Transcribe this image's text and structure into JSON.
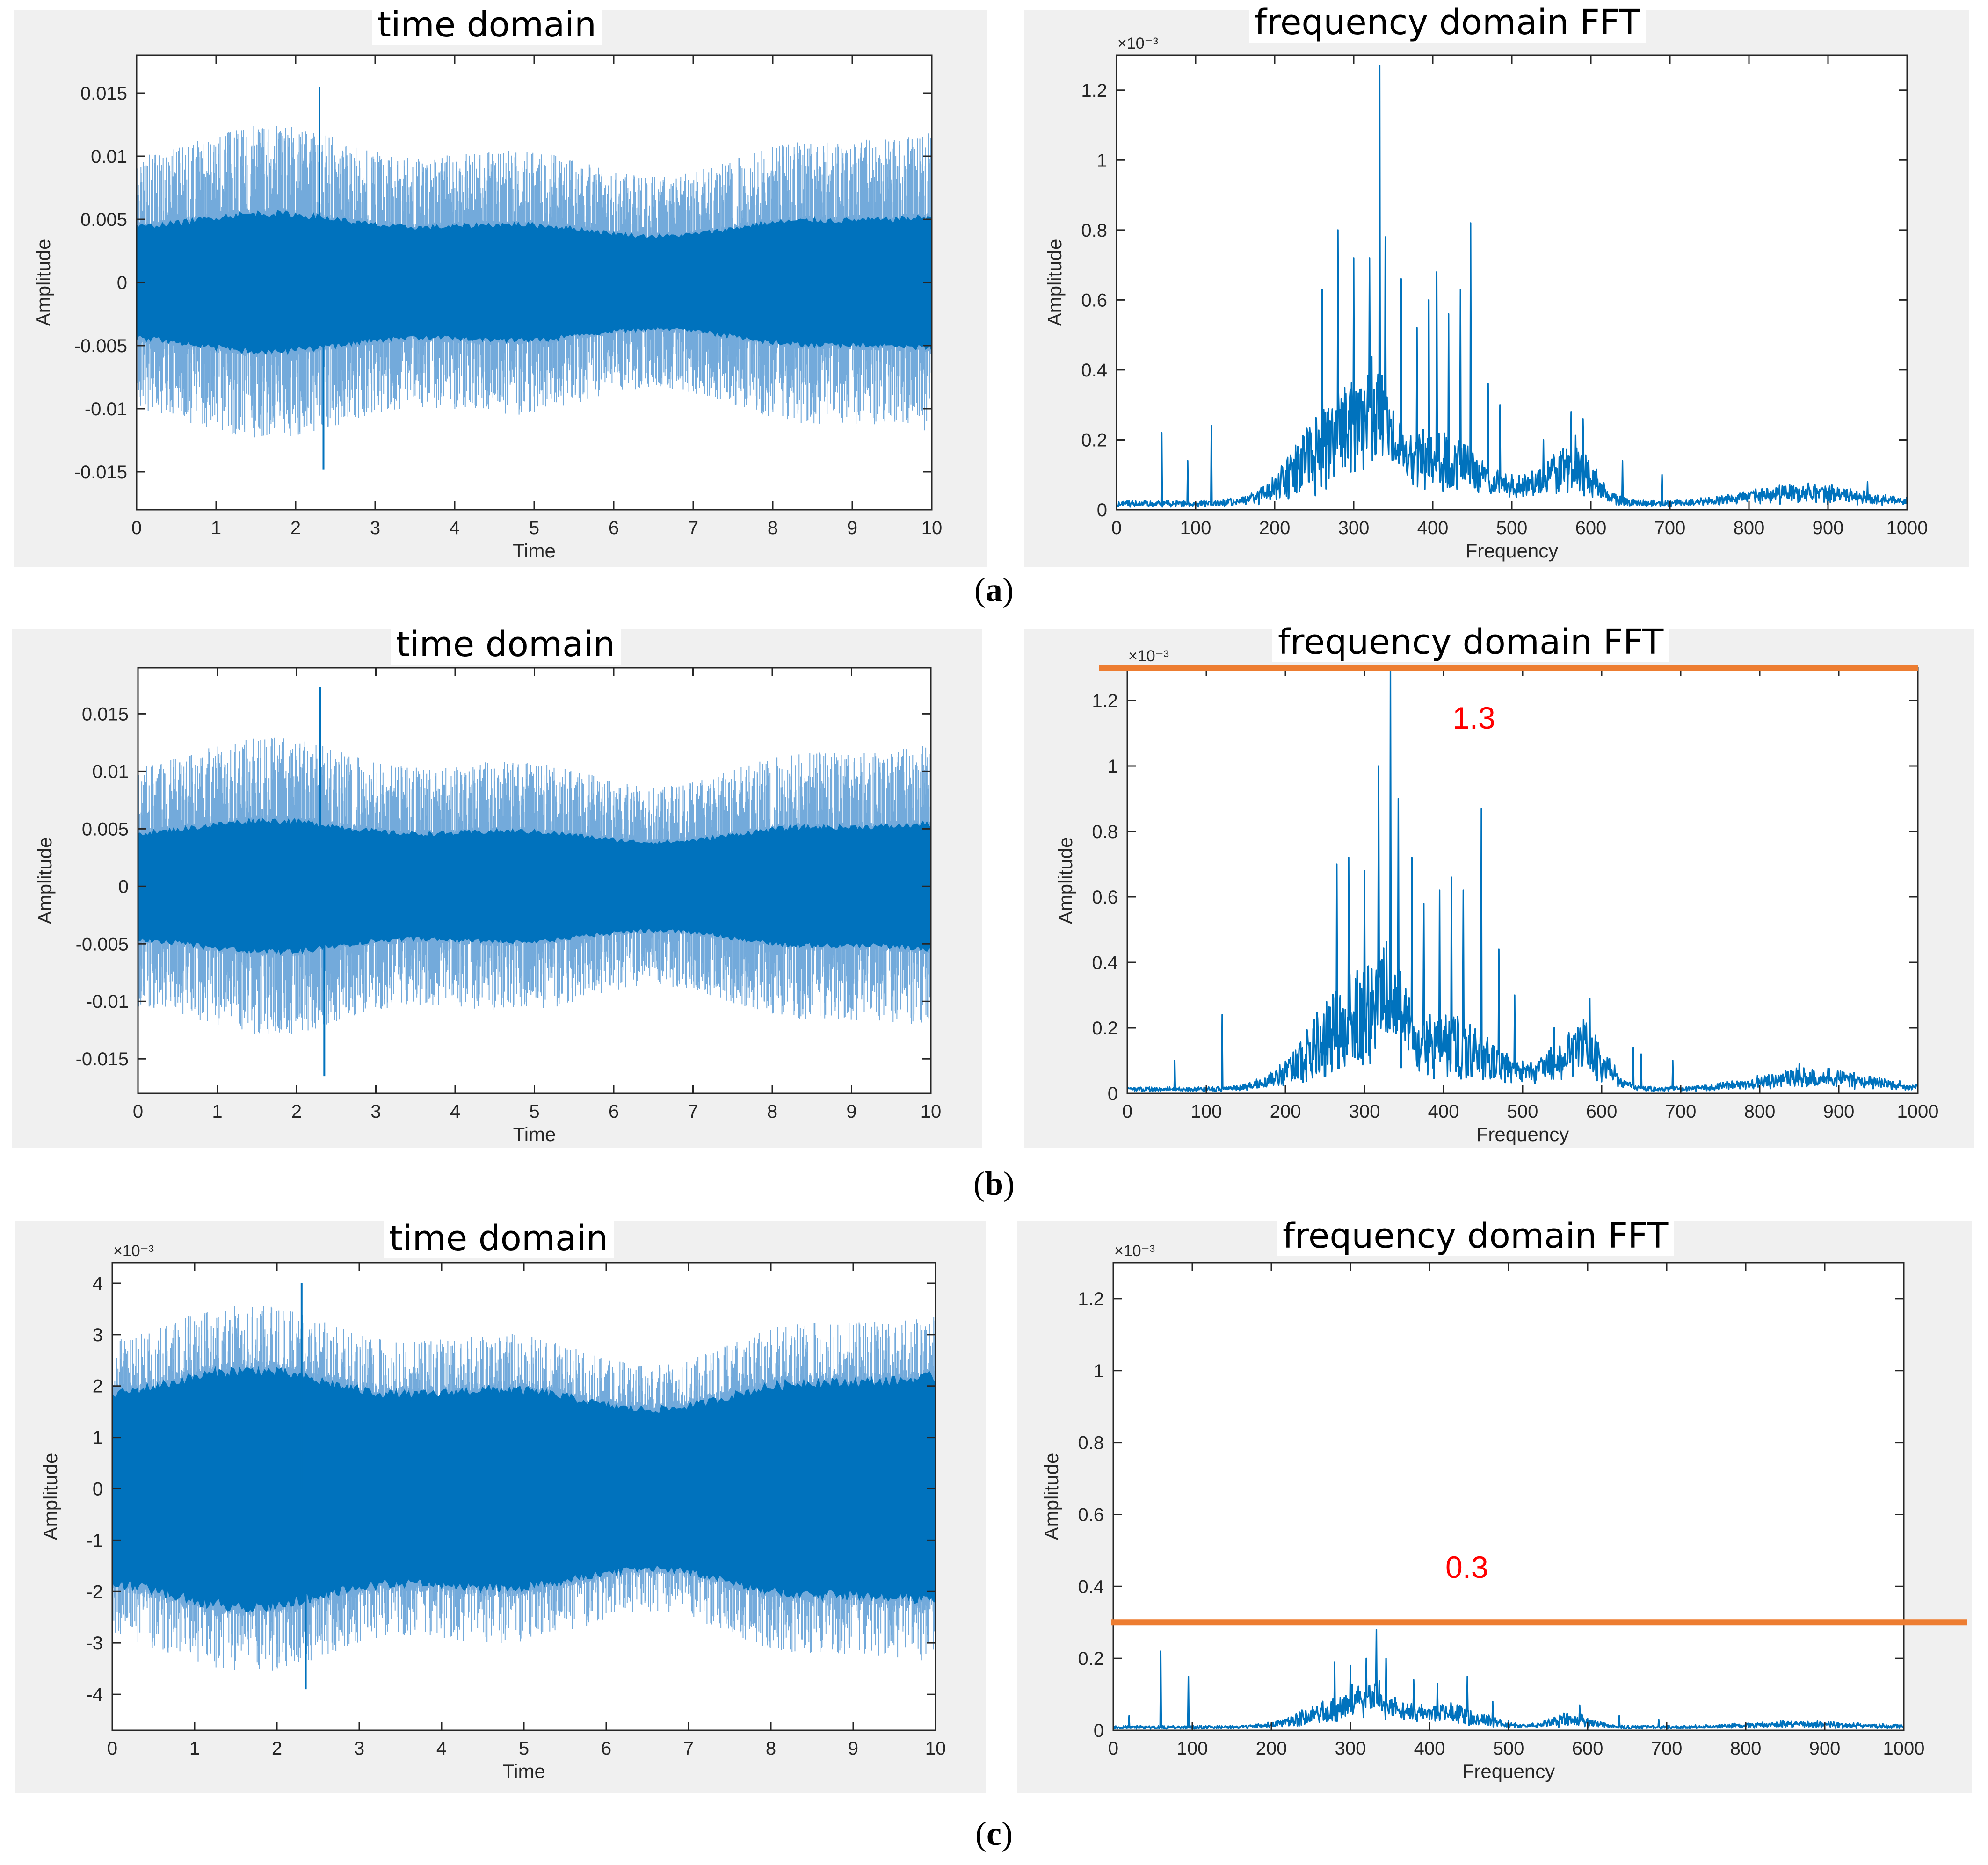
{
  "figure": {
    "captions": [
      "a",
      "b",
      "c"
    ]
  },
  "colors": {
    "signal": "#0072bd",
    "annotation": "#ed7d31",
    "annotation_text": "#ff0000",
    "panel_bg": "#f0f0f0"
  },
  "chart_data": [
    {
      "id": "a-time",
      "type": "line",
      "title": "time domain",
      "xlabel": "Time",
      "ylabel": "Amplitude",
      "exponent": "",
      "xlim": [
        0,
        10
      ],
      "ylim": [
        -0.018,
        0.018
      ],
      "xticks": [
        0,
        1,
        2,
        3,
        4,
        5,
        6,
        7,
        8,
        9,
        10
      ],
      "yticks": [
        -0.015,
        -0.01,
        -0.005,
        0,
        0.005,
        0.01,
        0.015
      ],
      "yticklabels": [
        "-0.015",
        "-0.01",
        "-0.005",
        "0",
        "0.005",
        "0.01",
        "0.015"
      ],
      "signal": {
        "kind": "noise",
        "core": 0.0045,
        "spike": 0.0104,
        "peak_max": 0.0155,
        "peak_min": -0.0148
      }
    },
    {
      "id": "a-fft",
      "type": "line",
      "title": "frequency domain FFT",
      "xlabel": "Frequency",
      "ylabel": "Amplitude",
      "exponent": "×10⁻³",
      "xlim": [
        0,
        1000
      ],
      "ylim": [
        0,
        1.3
      ],
      "xticks": [
        0,
        100,
        200,
        300,
        400,
        500,
        600,
        700,
        800,
        900,
        1000
      ],
      "yticks": [
        0,
        0.2,
        0.4,
        0.6,
        0.8,
        1,
        1.2
      ],
      "yticklabels": [
        "0",
        "0.2",
        "0.4",
        "0.6",
        "0.8",
        "1",
        "1.2"
      ],
      "spectrum": {
        "baseline": 0.02,
        "bands": [
          [
            290,
            55,
            0.2
          ],
          [
            330,
            20,
            0.13
          ],
          [
            420,
            45,
            0.12
          ],
          [
            580,
            25,
            0.09
          ],
          [
            540,
            40,
            0.05
          ],
          [
            870,
            70,
            0.035
          ]
        ],
        "peaks": [
          [
            57,
            0.22
          ],
          [
            90,
            0.14
          ],
          [
            120,
            0.24
          ],
          [
            260,
            0.63
          ],
          [
            280,
            0.8
          ],
          [
            300,
            0.72
          ],
          [
            320,
            0.72
          ],
          [
            333,
            1.27
          ],
          [
            340,
            0.78
          ],
          [
            360,
            0.66
          ],
          [
            380,
            0.52
          ],
          [
            395,
            0.6
          ],
          [
            405,
            0.68
          ],
          [
            420,
            0.56
          ],
          [
            435,
            0.63
          ],
          [
            448,
            0.82
          ],
          [
            470,
            0.36
          ],
          [
            485,
            0.3
          ],
          [
            540,
            0.2
          ],
          [
            575,
            0.28
          ],
          [
            590,
            0.26
          ],
          [
            640,
            0.14
          ],
          [
            690,
            0.1
          ],
          [
            950,
            0.08
          ]
        ]
      }
    },
    {
      "id": "b-time",
      "type": "line",
      "title": "time domain",
      "xlabel": "Time",
      "ylabel": "Amplitude",
      "exponent": "",
      "xlim": [
        0,
        10
      ],
      "ylim": [
        -0.018,
        0.019
      ],
      "xticks": [
        0,
        1,
        2,
        3,
        4,
        5,
        6,
        7,
        8,
        9,
        10
      ],
      "yticks": [
        -0.015,
        -0.01,
        -0.005,
        0,
        0.005,
        0.01,
        0.015
      ],
      "yticklabels": [
        "-0.015",
        "-0.01",
        "-0.005",
        "0",
        "0.005",
        "0.01",
        "0.015"
      ],
      "signal": {
        "kind": "noise",
        "core": 0.0047,
        "spike": 0.0108,
        "peak_max": 0.0173,
        "peak_min": -0.0165
      }
    },
    {
      "id": "b-fft",
      "type": "line",
      "title": "frequency domain FFT",
      "xlabel": "Frequency",
      "ylabel": "Amplitude",
      "exponent": "×10⁻³",
      "xlim": [
        0,
        1000
      ],
      "ylim": [
        0,
        1.3
      ],
      "xticks": [
        0,
        100,
        200,
        300,
        400,
        500,
        600,
        700,
        800,
        900,
        1000
      ],
      "yticks": [
        0,
        0.2,
        0.4,
        0.6,
        0.8,
        1,
        1.2
      ],
      "yticklabels": [
        "0",
        "0.2",
        "0.4",
        "0.6",
        "0.8",
        "1",
        "1.2"
      ],
      "annotation": {
        "label": "1.3",
        "value": 1.3
      },
      "spectrum": {
        "baseline": 0.015,
        "bands": [
          [
            290,
            55,
            0.22
          ],
          [
            330,
            20,
            0.14
          ],
          [
            420,
            45,
            0.13
          ],
          [
            580,
            25,
            0.1
          ],
          [
            540,
            40,
            0.06
          ],
          [
            870,
            70,
            0.04
          ]
        ],
        "peaks": [
          [
            60,
            0.1
          ],
          [
            120,
            0.24
          ],
          [
            265,
            0.7
          ],
          [
            280,
            0.72
          ],
          [
            300,
            0.68
          ],
          [
            318,
            1.0
          ],
          [
            333,
            1.3
          ],
          [
            343,
            0.9
          ],
          [
            360,
            0.72
          ],
          [
            375,
            0.58
          ],
          [
            395,
            0.62
          ],
          [
            410,
            0.66
          ],
          [
            425,
            0.62
          ],
          [
            448,
            0.87
          ],
          [
            470,
            0.44
          ],
          [
            490,
            0.3
          ],
          [
            540,
            0.2
          ],
          [
            585,
            0.29
          ],
          [
            640,
            0.14
          ],
          [
            650,
            0.12
          ],
          [
            690,
            0.1
          ],
          [
            850,
            0.09
          ]
        ]
      }
    },
    {
      "id": "c-time",
      "type": "line",
      "title": "time domain",
      "xlabel": "Time",
      "ylabel": "Amplitude",
      "exponent": "×10⁻³",
      "xlim": [
        0,
        10
      ],
      "ylim": [
        -4.7,
        4.4
      ],
      "xticks": [
        0,
        1,
        2,
        3,
        4,
        5,
        6,
        7,
        8,
        9,
        10
      ],
      "yticks": [
        -4,
        -3,
        -2,
        -1,
        0,
        1,
        2,
        3,
        4
      ],
      "yticklabels": [
        "-4",
        "-3",
        "-2",
        "-1",
        "0",
        "1",
        "2",
        "3",
        "4"
      ],
      "signal": {
        "kind": "noise",
        "core": 1.9,
        "spike": 3.0,
        "peak_max": 4.0,
        "peak_min": -3.9
      }
    },
    {
      "id": "c-fft",
      "type": "line",
      "title": "frequency domain FFT",
      "xlabel": "Frequency",
      "ylabel": "Amplitude",
      "exponent": "×10⁻³",
      "xlim": [
        0,
        1000
      ],
      "ylim": [
        0,
        1.3
      ],
      "xticks": [
        0,
        100,
        200,
        300,
        400,
        500,
        600,
        700,
        800,
        900,
        1000
      ],
      "yticks": [
        0,
        0.2,
        0.4,
        0.6,
        0.8,
        1,
        1.2
      ],
      "yticklabels": [
        "0",
        "0.2",
        "0.4",
        "0.6",
        "0.8",
        "1",
        "1.2"
      ],
      "annotation": {
        "label": "0.3",
        "value": 0.3
      },
      "spectrum": {
        "baseline": 0.01,
        "bands": [
          [
            300,
            50,
            0.06
          ],
          [
            330,
            20,
            0.04
          ],
          [
            420,
            45,
            0.04
          ],
          [
            580,
            25,
            0.025
          ],
          [
            870,
            70,
            0.01
          ]
        ],
        "peaks": [
          [
            20,
            0.04
          ],
          [
            60,
            0.22
          ],
          [
            95,
            0.15
          ],
          [
            280,
            0.19
          ],
          [
            300,
            0.18
          ],
          [
            320,
            0.2
          ],
          [
            333,
            0.28
          ],
          [
            345,
            0.2
          ],
          [
            380,
            0.14
          ],
          [
            410,
            0.13
          ],
          [
            448,
            0.15
          ],
          [
            480,
            0.08
          ],
          [
            590,
            0.07
          ],
          [
            640,
            0.04
          ],
          [
            690,
            0.03
          ]
        ]
      }
    }
  ]
}
